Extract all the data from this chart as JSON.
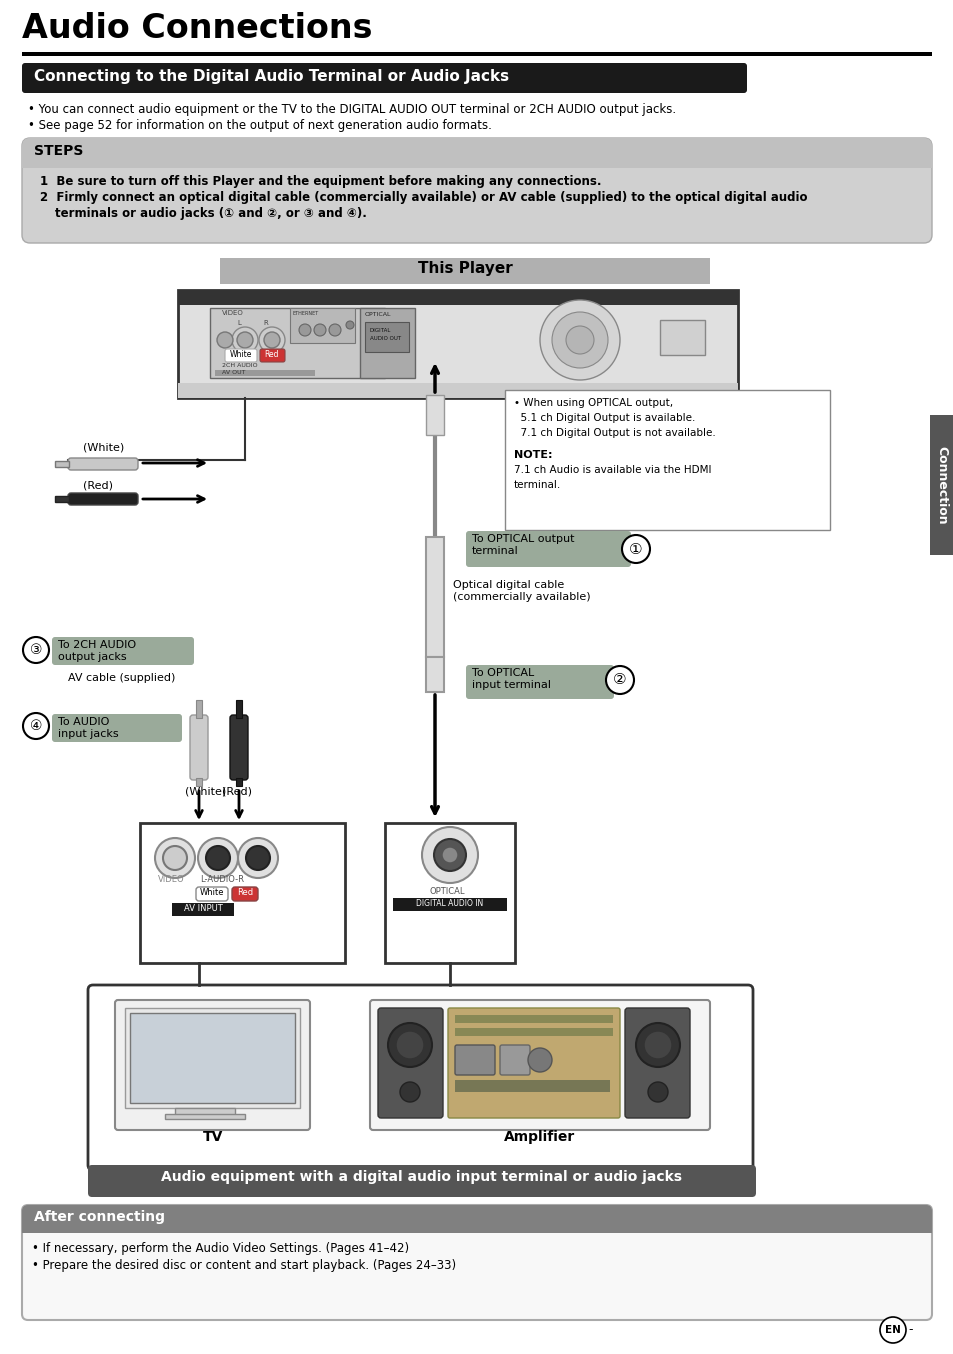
{
  "page_title": "Audio Connections",
  "section_title": "Connecting to the Digital Audio Terminal or Audio Jacks",
  "bullet1": "You can connect audio equipment or the TV to the DIGITAL AUDIO OUT terminal or 2CH AUDIO output jacks.",
  "bullet2": "See page 52 for information on the output of next generation audio formats.",
  "steps_title": "STEPS",
  "step1": "Be sure to turn off this Player and the equipment before making any connections.",
  "step2a": "Firmly connect an optical digital cable (commercially available) or AV cable (supplied) to the optical digital audio",
  "step2b": "terminals or audio jacks (① and ②, or ③ and ④).",
  "this_player": "This Player",
  "note1": "• When using OPTICAL output,",
  "note2": "  5.1 ch Digital Output is available.",
  "note3": "  7.1 ch Digital Output is not available.",
  "note_label": "NOTE:",
  "note4": "7.1 ch Audio is available via the HDMI",
  "note5": "terminal.",
  "opt_out_label": "To OPTICAL output\nterminal",
  "opt_cable_label": "Optical digital cable\n(commercially available)",
  "opt_in_label": "To OPTICAL\ninput terminal",
  "to_2ch": "To 2CH AUDIO\noutput jacks",
  "av_cable": "AV cable (supplied)",
  "to_audio": "To AUDIO\ninput jacks",
  "tv_label": "TV",
  "amp_label": "Amplifier",
  "bottom_bar": "Audio equipment with a digital audio input terminal or audio jacks",
  "after_title": "After connecting",
  "after1": "If necessary, perform the Audio Video Settings. (Pages 41–42)",
  "after2": "Prepare the desired disc or content and start playback. (Pages 24–33)",
  "en": "EN",
  "connection": "Connection",
  "c1": "①",
  "c2": "②",
  "c3": "③",
  "c4": "④"
}
